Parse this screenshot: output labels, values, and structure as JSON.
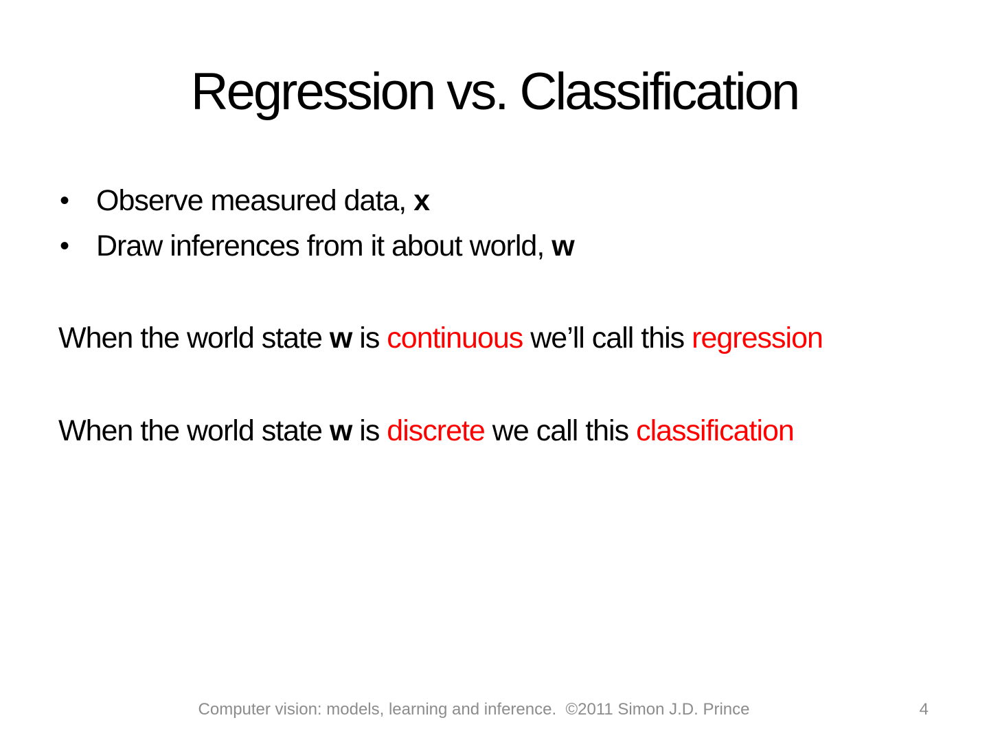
{
  "slide": {
    "title": "Regression vs. Classification",
    "bullets": [
      {
        "text": "Observe measured data, ",
        "term": "x"
      },
      {
        "text": "Draw inferences from it about world, ",
        "term": "w"
      }
    ],
    "statements": [
      {
        "s0": "When the world state ",
        "s1": "w",
        "s2": " is ",
        "s3": "continuous",
        "s4": " we’ll call this ",
        "s5": "regression"
      },
      {
        "s0": "When the world state ",
        "s1": "w",
        "s2": " is ",
        "s3": "discrete",
        "s4": " we call this ",
        "s5": "classification"
      }
    ],
    "footer": {
      "text": "Computer vision: models, learning and inference.  ©2011 Simon J.D. Prince",
      "page_number": "4"
    },
    "colors": {
      "text_black": "#000000",
      "highlight_red": "#FF0000",
      "footer_gray": "#8C8C8C",
      "background": "#FFFFFF"
    },
    "bullet_glyph": "•"
  }
}
